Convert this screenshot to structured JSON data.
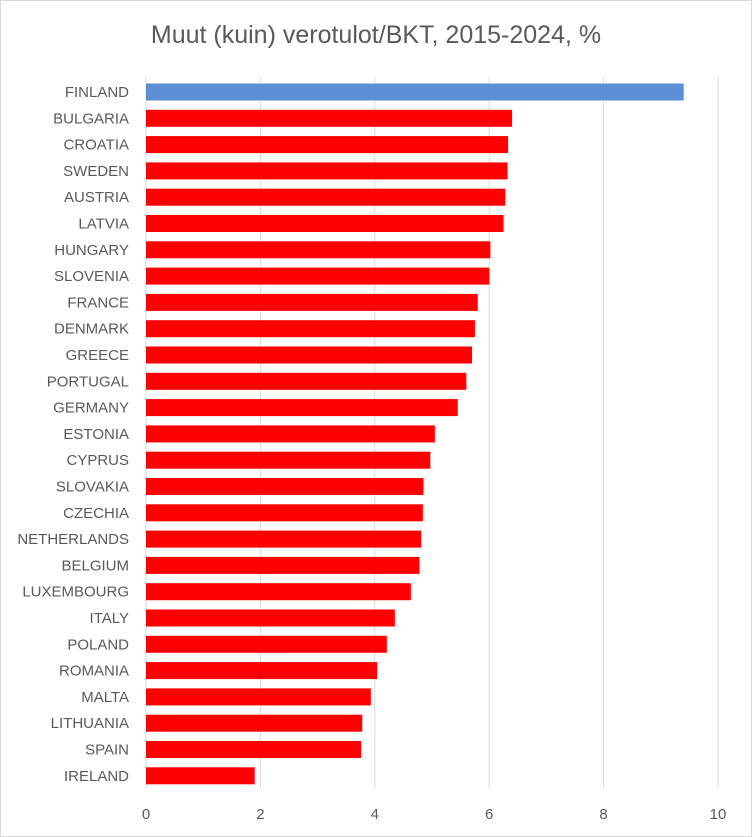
{
  "chart_data": {
    "type": "bar",
    "orientation": "horizontal",
    "title": "Muut (kuin) verotulot/BKT, 2015-2024, %",
    "categories": [
      "FINLAND",
      "BULGARIA",
      "CROATIA",
      "SWEDEN",
      "AUSTRIA",
      "LATVIA",
      "HUNGARY",
      "SLOVENIA",
      "FRANCE",
      "DENMARK",
      "GREECE",
      "PORTUGAL",
      "GERMANY",
      "ESTONIA",
      "CYPRUS",
      "SLOVAKIA",
      "CZECHIA",
      "NETHERLANDS",
      "BELGIUM",
      "LUXEMBOURG",
      "ITALY",
      "POLAND",
      "ROMANIA",
      "MALTA",
      "LITHUANIA",
      "SPAIN",
      "IRELAND"
    ],
    "values": [
      9.4,
      6.4,
      6.33,
      6.32,
      6.28,
      6.25,
      6.02,
      6.0,
      5.8,
      5.75,
      5.7,
      5.6,
      5.45,
      5.05,
      4.97,
      4.85,
      4.84,
      4.81,
      4.78,
      4.63,
      4.35,
      4.21,
      4.04,
      3.93,
      3.78,
      3.76,
      1.9
    ],
    "colors": [
      "#5b8fd6",
      "#ff0000",
      "#ff0000",
      "#ff0000",
      "#ff0000",
      "#ff0000",
      "#ff0000",
      "#ff0000",
      "#ff0000",
      "#ff0000",
      "#ff0000",
      "#ff0000",
      "#ff0000",
      "#ff0000",
      "#ff0000",
      "#ff0000",
      "#ff0000",
      "#ff0000",
      "#ff0000",
      "#ff0000",
      "#ff0000",
      "#ff0000",
      "#ff0000",
      "#ff0000",
      "#ff0000",
      "#ff0000",
      "#ff0000"
    ],
    "xlim": [
      0,
      10
    ],
    "xticks": [
      "0",
      "2",
      "4",
      "6",
      "8",
      "10"
    ],
    "xlabel": "",
    "ylabel": "",
    "grid": "vertical",
    "legend": "none"
  }
}
